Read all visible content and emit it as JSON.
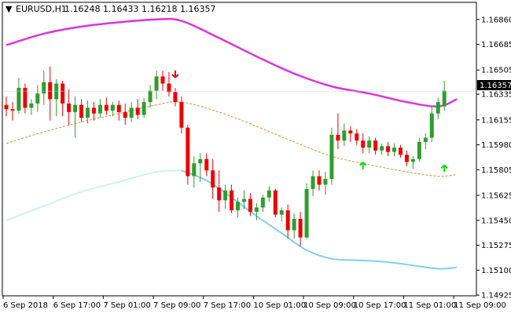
{
  "header": {
    "symbol": "EURUSD,H1",
    "ohlc": "1.16248 1.16433 1.16218 1.16357",
    "arrow": "▼"
  },
  "chart_data": {
    "type": "candlestick",
    "price_range": [
      1.1492,
      1.1698
    ],
    "y_ticks": [
      "1.16860",
      "1.16685",
      "1.16505",
      "1.16335",
      "1.16155",
      "1.15980",
      "1.15805",
      "1.15625",
      "1.15450",
      "1.15275",
      "1.15100",
      "1.14925"
    ],
    "y_tick_values": [
      1.1686,
      1.16685,
      1.16505,
      1.16335,
      1.16155,
      1.1598,
      1.15805,
      1.15625,
      1.1545,
      1.15275,
      1.151,
      1.14925
    ],
    "x_labels": [
      "6 Sep 2018",
      "6 Sep 17:00",
      "7 Sep 01:00",
      "7 Sep 09:00",
      "7 Sep 17:00",
      "10 Sep 01:00",
      "10 Sep 09:00",
      "10 Sep 17:00",
      "11 Sep 01:00",
      "11 Sep 09:00"
    ],
    "x_label_index": [
      0,
      8,
      16,
      24,
      32,
      40,
      48,
      56,
      64,
      72
    ],
    "current_price_label": "1.16357",
    "current_price": 1.16357,
    "colors": {
      "bull": "#2e9e2e",
      "bear": "#ee0000",
      "ma_slow": "#dd33dd",
      "ma_mid": "#e8872a",
      "ma_fast": "#7ccfee",
      "ma_fast_early": "#c9f2f4",
      "signal_up": "#00dd00",
      "signal_down": "#ee0000",
      "price_tag": "#000000"
    },
    "candles": [
      [
        1.1626,
        1.1632,
        1.1618,
        1.1623
      ],
      [
        1.1623,
        1.1628,
        1.1615,
        1.1622
      ],
      [
        1.1622,
        1.1645,
        1.162,
        1.1638
      ],
      [
        1.1638,
        1.1641,
        1.162,
        1.1624
      ],
      [
        1.1624,
        1.163,
        1.1619,
        1.1627
      ],
      [
        1.1627,
        1.164,
        1.1621,
        1.1634
      ],
      [
        1.1634,
        1.165,
        1.1626,
        1.1642
      ],
      [
        1.1642,
        1.1653,
        1.1615,
        1.163
      ],
      [
        1.163,
        1.1644,
        1.1618,
        1.1641
      ],
      [
        1.1641,
        1.1643,
        1.1618,
        1.1627
      ],
      [
        1.1627,
        1.1637,
        1.1612,
        1.1621
      ],
      [
        1.1621,
        1.1632,
        1.1603,
        1.1626
      ],
      [
        1.1626,
        1.163,
        1.1614,
        1.1617
      ],
      [
        1.1617,
        1.1629,
        1.1613,
        1.1624
      ],
      [
        1.1624,
        1.1628,
        1.1615,
        1.162
      ],
      [
        1.162,
        1.163,
        1.1617,
        1.1626
      ],
      [
        1.1626,
        1.1631,
        1.1619,
        1.1622
      ],
      [
        1.1622,
        1.1628,
        1.1618,
        1.1626
      ],
      [
        1.1626,
        1.1629,
        1.1615,
        1.1621
      ],
      [
        1.1621,
        1.1627,
        1.1612,
        1.1617
      ],
      [
        1.1617,
        1.1628,
        1.1614,
        1.1624
      ],
      [
        1.1624,
        1.163,
        1.1616,
        1.1619
      ],
      [
        1.1619,
        1.1631,
        1.1617,
        1.1628
      ],
      [
        1.1628,
        1.164,
        1.1624,
        1.1636
      ],
      [
        1.1636,
        1.165,
        1.163,
        1.1646
      ],
      [
        1.1646,
        1.165,
        1.1636,
        1.1641
      ],
      [
        1.1641,
        1.1649,
        1.1632,
        1.1635
      ],
      [
        1.1635,
        1.1638,
        1.1625,
        1.1628
      ],
      [
        1.1628,
        1.1632,
        1.1606,
        1.161
      ],
      [
        1.161,
        1.1612,
        1.157,
        1.1576
      ],
      [
        1.1576,
        1.159,
        1.1568,
        1.1585
      ],
      [
        1.1585,
        1.1592,
        1.1572,
        1.1588
      ],
      [
        1.1588,
        1.1592,
        1.1576,
        1.158
      ],
      [
        1.158,
        1.1588,
        1.156,
        1.1568
      ],
      [
        1.1568,
        1.158,
        1.1551,
        1.1559
      ],
      [
        1.1559,
        1.157,
        1.1553,
        1.1566
      ],
      [
        1.1566,
        1.157,
        1.155,
        1.1552
      ],
      [
        1.1552,
        1.1561,
        1.1547,
        1.1558
      ],
      [
        1.1558,
        1.1566,
        1.1553,
        1.156
      ],
      [
        1.156,
        1.1564,
        1.1548,
        1.1551
      ],
      [
        1.1551,
        1.1557,
        1.1545,
        1.1554
      ],
      [
        1.1554,
        1.1563,
        1.1551,
        1.1561
      ],
      [
        1.1561,
        1.1569,
        1.1558,
        1.1566
      ],
      [
        1.1566,
        1.1567,
        1.1547,
        1.1549
      ],
      [
        1.1549,
        1.1554,
        1.1544,
        1.1552
      ],
      [
        1.1552,
        1.1556,
        1.1532,
        1.1538
      ],
      [
        1.1538,
        1.155,
        1.1532,
        1.1546
      ],
      [
        1.1546,
        1.1551,
        1.1527,
        1.1533
      ],
      [
        1.1533,
        1.1571,
        1.1532,
        1.1567
      ],
      [
        1.1567,
        1.158,
        1.1562,
        1.1576
      ],
      [
        1.1576,
        1.158,
        1.1566,
        1.157
      ],
      [
        1.157,
        1.1579,
        1.1563,
        1.1574
      ],
      [
        1.1574,
        1.161,
        1.157,
        1.1605
      ],
      [
        1.1605,
        1.162,
        1.1595,
        1.1601
      ],
      [
        1.1601,
        1.1613,
        1.1597,
        1.1608
      ],
      [
        1.1608,
        1.1611,
        1.16,
        1.1606
      ],
      [
        1.1606,
        1.1609,
        1.1598,
        1.1601
      ],
      [
        1.1601,
        1.1606,
        1.1592,
        1.1596
      ],
      [
        1.1596,
        1.1604,
        1.1592,
        1.1601
      ],
      [
        1.1601,
        1.1603,
        1.1591,
        1.1594
      ],
      [
        1.1594,
        1.1599,
        1.1591,
        1.1597
      ],
      [
        1.1597,
        1.16,
        1.159,
        1.1593
      ],
      [
        1.1593,
        1.1599,
        1.159,
        1.1596
      ],
      [
        1.1596,
        1.1598,
        1.1589,
        1.1591
      ],
      [
        1.1591,
        1.1594,
        1.1583,
        1.1586
      ],
      [
        1.1586,
        1.159,
        1.1581,
        1.1588
      ],
      [
        1.1588,
        1.1603,
        1.1586,
        1.16
      ],
      [
        1.16,
        1.1606,
        1.1595,
        1.1603
      ],
      [
        1.1603,
        1.1625,
        1.16,
        1.162
      ],
      [
        1.162,
        1.1631,
        1.1616,
        1.1628
      ],
      [
        1.1625,
        1.1643,
        1.1622,
        1.1636
      ]
    ],
    "ma_slow": [
      [
        0,
        1.1668
      ],
      [
        6,
        1.1676
      ],
      [
        12,
        1.1681
      ],
      [
        18,
        1.1684
      ],
      [
        24,
        1.1686
      ],
      [
        28,
        1.1685
      ],
      [
        34,
        1.1673
      ],
      [
        40,
        1.166
      ],
      [
        46,
        1.1648
      ],
      [
        52,
        1.1639
      ],
      [
        58,
        1.1634
      ],
      [
        64,
        1.1628
      ],
      [
        69,
        1.1625
      ],
      [
        72,
        1.163
      ]
    ],
    "ma_mid": [
      [
        0,
        1.1599
      ],
      [
        6,
        1.1607
      ],
      [
        12,
        1.1614
      ],
      [
        18,
        1.162
      ],
      [
        24,
        1.1626
      ],
      [
        28,
        1.1628
      ],
      [
        34,
        1.1621
      ],
      [
        40,
        1.1611
      ],
      [
        46,
        1.16
      ],
      [
        52,
        1.159
      ],
      [
        58,
        1.1584
      ],
      [
        64,
        1.1579
      ],
      [
        69,
        1.1576
      ],
      [
        72,
        1.1577
      ]
    ],
    "ma_fast_early": [
      [
        0,
        1.1545
      ],
      [
        6,
        1.1555
      ],
      [
        12,
        1.1565
      ],
      [
        18,
        1.1572
      ],
      [
        24,
        1.1579
      ],
      [
        28,
        1.158
      ]
    ],
    "ma_fast": [
      [
        28,
        1.158
      ],
      [
        32,
        1.1573
      ],
      [
        36,
        1.1561
      ],
      [
        40,
        1.1548
      ],
      [
        44,
        1.1536
      ],
      [
        48,
        1.1524
      ],
      [
        52,
        1.1518
      ],
      [
        56,
        1.1517
      ],
      [
        60,
        1.1516
      ],
      [
        64,
        1.1514
      ],
      [
        69,
        1.1511
      ],
      [
        72,
        1.1512
      ]
    ],
    "signals": [
      {
        "type": "down",
        "index": 27,
        "price": 1.1648
      },
      {
        "type": "up",
        "index": 57,
        "price": 1.1583
      },
      {
        "type": "up",
        "index": 70,
        "price": 1.1581
      }
    ]
  }
}
